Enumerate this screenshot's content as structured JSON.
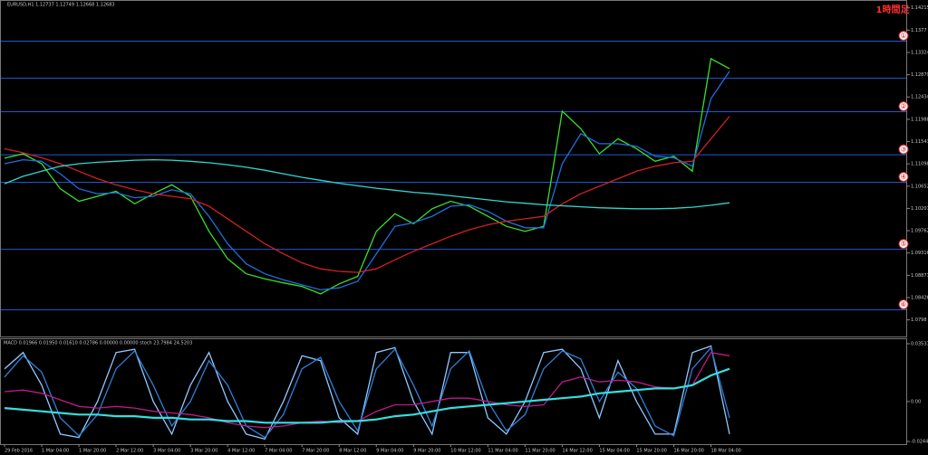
{
  "chart_data": [
    {
      "type": "line",
      "title": "EURUSD,H1  1.12737 1.12749 1.12668 1.12683",
      "annotation": "1時間足",
      "x": [
        "29 Feb 2016",
        null,
        "1 Mar 04:00",
        null,
        "1 Mar 20:00",
        null,
        "2 Mar 12:00",
        null,
        "3 Mar 04:00",
        null,
        "3 Mar 20:00",
        null,
        "4 Mar 12:00",
        null,
        "7 Mar 04:00",
        null,
        "7 Mar 20:00",
        null,
        "8 Mar 12:00",
        null,
        "9 Mar 04:00",
        null,
        "9 Mar 20:00",
        null,
        "10 Mar 12:00",
        null,
        "11 Mar 04:00",
        null,
        "11 Mar 20:00",
        null,
        "14 Mar 12:00",
        null,
        "15 Mar 04:00",
        null,
        "15 Mar 20:00",
        null,
        "16 Mar 20:00",
        null,
        "18 Mar 04:00",
        null
      ],
      "ylim": [
        1.0772,
        1.143
      ],
      "yticks": [
        1.14215,
        1.1377,
        1.13324,
        1.12879,
        1.12434,
        1.11988,
        1.11543,
        1.11098,
        1.10652,
        1.10207,
        1.09762,
        1.09316,
        1.08871,
        1.08426,
        1.0798
      ],
      "levels": [
        {
          "value": 1.1355,
          "label": "①"
        },
        1.1281,
        {
          "value": 1.1214,
          "label": "②"
        },
        {
          "value": 1.1128,
          "label": "③"
        },
        {
          "value": 1.1073,
          "label": "④"
        },
        {
          "value": 1.0939,
          "label": "⑤"
        },
        {
          "value": 1.0818,
          "label": "⑥"
        }
      ],
      "level_color": "#1e5ad2",
      "series": [
        {
          "name": "EURUSD",
          "color": "#39e02a",
          "values": [
            1.1121,
            1.113,
            1.111,
            1.106,
            1.1035,
            1.1045,
            1.1055,
            1.103,
            1.105,
            1.1068,
            1.1045,
            1.0975,
            1.092,
            1.089,
            1.088,
            1.0872,
            1.0865,
            1.085,
            1.087,
            1.0885,
            1.0975,
            1.101,
            1.099,
            1.102,
            1.1035,
            1.1025,
            1.1005,
            1.0985,
            1.0975,
            1.0985,
            1.1215,
            1.118,
            1.113,
            1.116,
            1.114,
            1.1115,
            1.1125,
            1.1095,
            1.132,
            1.13
          ]
        },
        {
          "name": "MA fast",
          "color": "#1f6fe0",
          "values": [
            1.111,
            1.1118,
            1.1115,
            1.109,
            1.106,
            1.105,
            1.1052,
            1.1042,
            1.1045,
            1.1058,
            1.105,
            1.1005,
            1.095,
            1.091,
            1.089,
            1.0878,
            1.0868,
            1.0858,
            1.0862,
            1.0875,
            1.093,
            1.0985,
            1.0992,
            1.1005,
            1.1025,
            1.1028,
            1.1015,
            1.0995,
            1.0982,
            1.0982,
            1.111,
            1.117,
            1.115,
            1.115,
            1.1145,
            1.1125,
            1.1122,
            1.1105,
            1.124,
            1.1295
          ]
        },
        {
          "name": "MA mid",
          "color": "#d42020",
          "values": [
            1.114,
            1.1132,
            1.1122,
            1.111,
            1.1095,
            1.108,
            1.1068,
            1.1058,
            1.105,
            1.1045,
            1.104,
            1.1025,
            1.1,
            1.0975,
            1.095,
            1.093,
            1.0912,
            1.09,
            1.0895,
            1.0893,
            1.09,
            1.0918,
            1.0935,
            1.095,
            1.0965,
            1.0978,
            1.0988,
            1.0995,
            1.1,
            1.1005,
            1.103,
            1.105,
            1.1065,
            1.108,
            1.1095,
            1.1105,
            1.1112,
            1.1115,
            1.116,
            1.1205
          ]
        },
        {
          "name": "MA slow",
          "color": "#33d6d0",
          "values": [
            1.107,
            1.1085,
            1.1095,
            1.1105,
            1.111,
            1.1113,
            1.1115,
            1.1117,
            1.1118,
            1.1117,
            1.1115,
            1.1112,
            1.1108,
            1.1103,
            1.1097,
            1.109,
            1.1083,
            1.1077,
            1.1071,
            1.1066,
            1.1061,
            1.1057,
            1.1053,
            1.105,
            1.1046,
            1.1042,
            1.1038,
            1.1034,
            1.1031,
            1.1028,
            1.1026,
            1.1024,
            1.1022,
            1.1021,
            1.102,
            1.102,
            1.1021,
            1.1023,
            1.1027,
            1.1032
          ]
        }
      ]
    },
    {
      "type": "line",
      "title": "MACD 0.01966 0.01950 0.01610 0.02786 0.00000 0.00000  stoch 23.7984 24.5203",
      "ylim": [
        -0.02446,
        0.03537
      ],
      "yticks": [
        0.03537,
        {
          "value": 0,
          "label": "0.00"
        },
        -0.02446
      ],
      "series": [
        {
          "name": "osc 1",
          "color": "#8fc8ff",
          "values": [
            0.02,
            0.03,
            0.01,
            -0.02,
            -0.022,
            0.0,
            0.03,
            0.032,
            0.0,
            -0.02,
            0.01,
            0.03,
            0.0,
            -0.02,
            -0.023,
            0.0,
            0.028,
            0.025,
            -0.01,
            -0.02,
            0.03,
            0.033,
            0.0,
            -0.02,
            0.03,
            0.03,
            -0.01,
            -0.02,
            0.0,
            0.03,
            0.032,
            0.02,
            -0.01,
            0.025,
            0.0,
            -0.02,
            -0.02,
            0.03,
            0.034,
            -0.02
          ]
        },
        {
          "name": "osc 2",
          "color": "#2f7fd8",
          "values": [
            0.015,
            0.028,
            0.018,
            -0.01,
            -0.021,
            -0.008,
            0.02,
            0.031,
            0.01,
            -0.015,
            0.0,
            0.025,
            0.01,
            -0.015,
            -0.022,
            -0.008,
            0.02,
            0.027,
            0.0,
            -0.018,
            0.02,
            0.032,
            0.01,
            -0.015,
            0.02,
            0.031,
            0.0,
            -0.018,
            -0.008,
            0.02,
            0.031,
            0.026,
            0.0,
            0.018,
            0.008,
            -0.015,
            -0.021,
            0.02,
            0.033,
            -0.01
          ]
        },
        {
          "name": "MACD",
          "color": "#c0188c",
          "values": [
            0.006,
            0.007,
            0.005,
            0.001,
            -0.003,
            -0.004,
            -0.003,
            -0.004,
            -0.006,
            -0.007,
            -0.008,
            -0.01,
            -0.013,
            -0.015,
            -0.016,
            -0.015,
            -0.013,
            -0.012,
            -0.013,
            -0.012,
            -0.006,
            -0.002,
            -0.002,
            0.0,
            0.002,
            0.002,
            0.0,
            -0.002,
            -0.003,
            -0.002,
            0.012,
            0.015,
            0.012,
            0.013,
            0.012,
            0.009,
            0.008,
            0.01,
            0.03,
            0.028
          ]
        },
        {
          "name": "signal",
          "color": "#33e0e0",
          "values": [
            -0.004,
            -0.005,
            -0.006,
            -0.007,
            -0.008,
            -0.008,
            -0.009,
            -0.009,
            -0.01,
            -0.01,
            -0.011,
            -0.011,
            -0.012,
            -0.012,
            -0.013,
            -0.013,
            -0.013,
            -0.013,
            -0.012,
            -0.012,
            -0.011,
            -0.009,
            -0.008,
            -0.006,
            -0.004,
            -0.003,
            -0.002,
            -0.001,
            0.0,
            0.001,
            0.002,
            0.003,
            0.005,
            0.006,
            0.007,
            0.008,
            0.008,
            0.01,
            0.016,
            0.02
          ]
        }
      ]
    }
  ]
}
